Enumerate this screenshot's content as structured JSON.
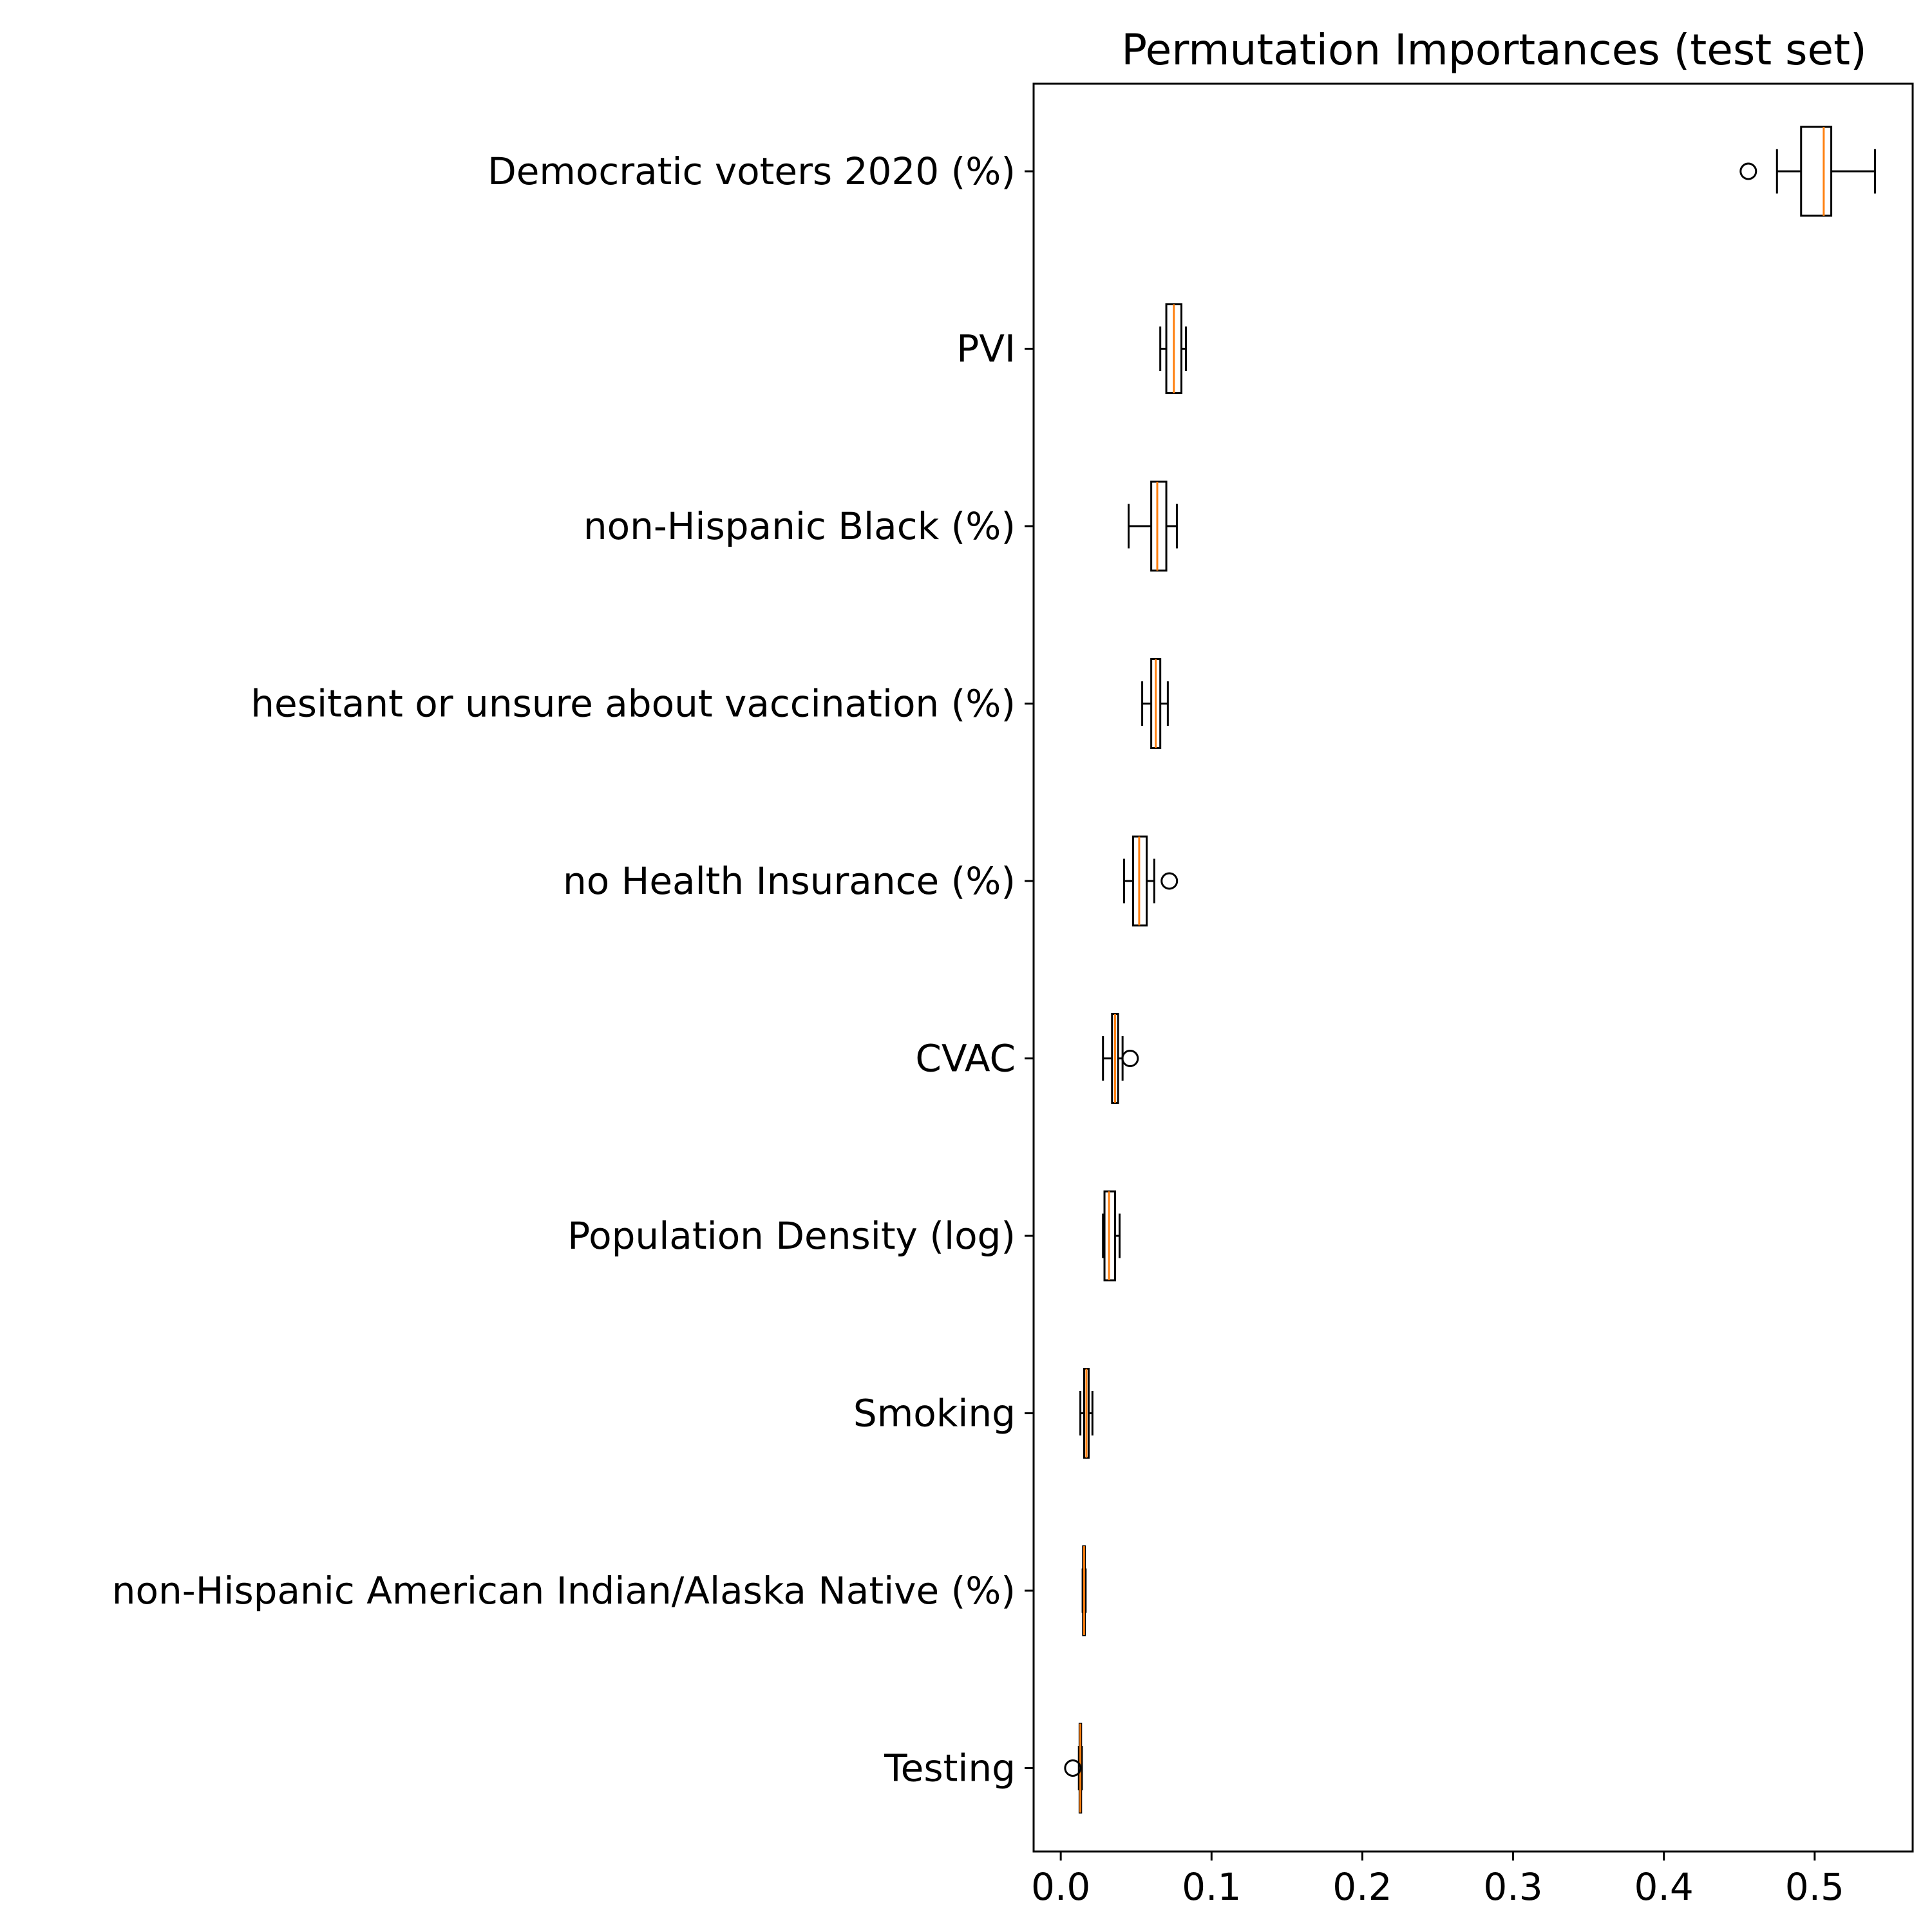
{
  "chart_data": {
    "type": "boxplot",
    "orientation": "horizontal",
    "title": "Permutation Importances (test set)",
    "xlabel": "",
    "ylabel": "",
    "xlim": [
      -0.018,
      0.565
    ],
    "x_ticks": [
      0.0,
      0.1,
      0.2,
      0.3,
      0.4,
      0.5
    ],
    "x_tick_labels": [
      "0.0",
      "0.1",
      "0.2",
      "0.3",
      "0.4",
      "0.5"
    ],
    "grid": false,
    "box_color": "#000000",
    "median_color": "#ff7f0e",
    "categories": [
      "Democratic voters 2020 (%)",
      "PVI",
      "non-Hispanic Black (%)",
      "hesitant or unsure about vaccination (%)",
      "no Health Insurance (%)",
      "CVAC",
      "Population Density (log)",
      "Smoking",
      "non-Hispanic American Indian/Alaska Native (%)",
      "Testing"
    ],
    "boxes": [
      {
        "whisker_low": 0.475,
        "q1": 0.491,
        "median": 0.506,
        "q3": 0.511,
        "whisker_high": 0.54,
        "outliers": [
          0.456
        ]
      },
      {
        "whisker_low": 0.066,
        "q1": 0.07,
        "median": 0.075,
        "q3": 0.08,
        "whisker_high": 0.083,
        "outliers": []
      },
      {
        "whisker_low": 0.045,
        "q1": 0.06,
        "median": 0.064,
        "q3": 0.07,
        "whisker_high": 0.077,
        "outliers": []
      },
      {
        "whisker_low": 0.054,
        "q1": 0.06,
        "median": 0.063,
        "q3": 0.066,
        "whisker_high": 0.071,
        "outliers": []
      },
      {
        "whisker_low": 0.042,
        "q1": 0.048,
        "median": 0.052,
        "q3": 0.057,
        "whisker_high": 0.062,
        "outliers": [
          0.072
        ]
      },
      {
        "whisker_low": 0.028,
        "q1": 0.034,
        "median": 0.036,
        "q3": 0.038,
        "whisker_high": 0.041,
        "outliers": [
          0.046
        ]
      },
      {
        "whisker_low": 0.028,
        "q1": 0.029,
        "median": 0.032,
        "q3": 0.036,
        "whisker_high": 0.039,
        "outliers": []
      },
      {
        "whisker_low": 0.013,
        "q1": 0.0155,
        "median": 0.017,
        "q3": 0.0185,
        "whisker_high": 0.021,
        "outliers": []
      },
      {
        "whisker_low": 0.0145,
        "q1": 0.0148,
        "median": 0.0155,
        "q3": 0.016,
        "whisker_high": 0.0165,
        "outliers": []
      },
      {
        "whisker_low": 0.012,
        "q1": 0.0125,
        "median": 0.013,
        "q3": 0.0135,
        "whisker_high": 0.014,
        "outliers": [
          0.008
        ]
      }
    ]
  }
}
